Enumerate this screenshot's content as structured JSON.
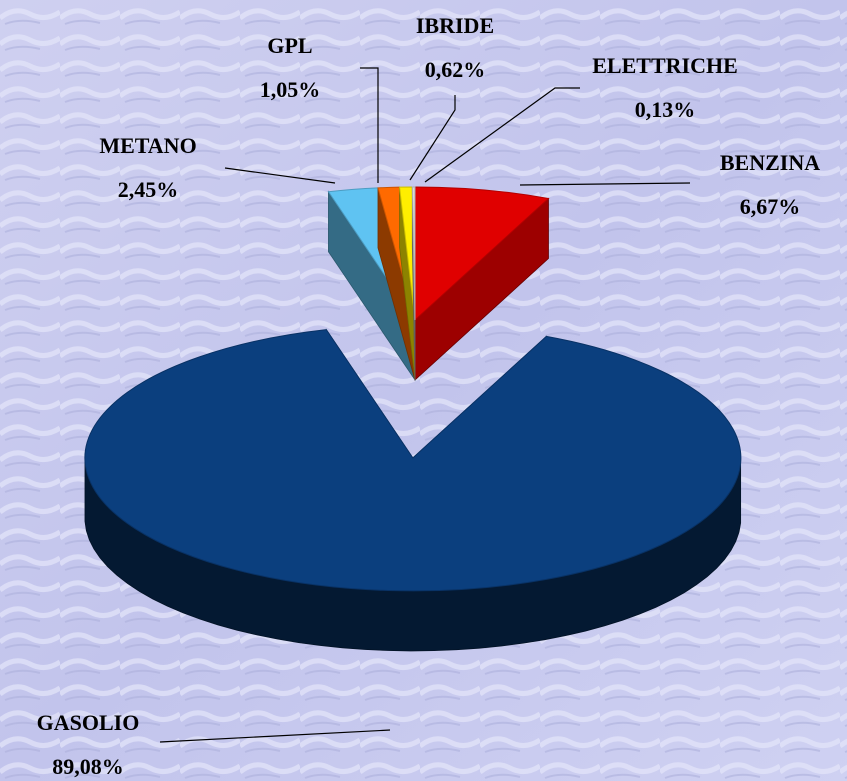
{
  "chart_data": {
    "type": "pie",
    "categories": [
      "BENZINA",
      "GASOLIO",
      "METANO",
      "GPL",
      "IBRIDE",
      "ELETTRICHE"
    ],
    "values": [
      6.67,
      89.08,
      2.45,
      1.05,
      0.62,
      0.13
    ],
    "value_labels": [
      "6,67%",
      "89,08%",
      "2,45%",
      "1,05%",
      "0,62%",
      "0,13%"
    ],
    "colors": [
      "#e00000",
      "#0b3f7e",
      "#5fc3f2",
      "#ff6a00",
      "#ffee00",
      "#d8d8d8"
    ]
  }
}
